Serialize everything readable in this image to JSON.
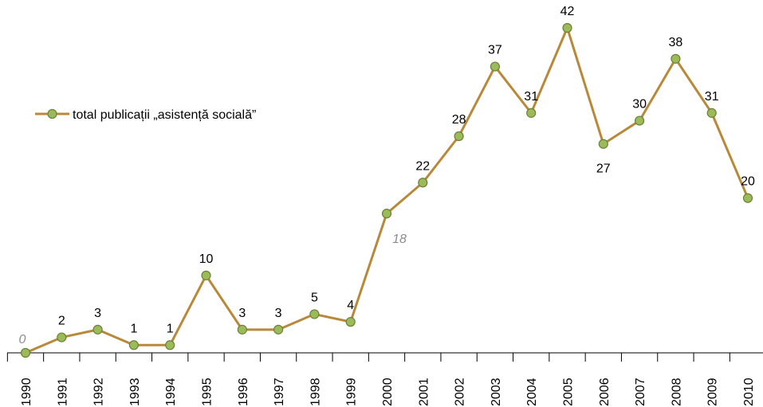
{
  "chart_data": {
    "type": "line",
    "categories": [
      "1990",
      "1991",
      "1992",
      "1993",
      "1994",
      "1995",
      "1996",
      "1997",
      "1998",
      "1999",
      "2000",
      "2001",
      "2002",
      "2003",
      "2004",
      "2005",
      "2006",
      "2007",
      "2008",
      "2009",
      "2010"
    ],
    "series": [
      {
        "name": "total publicații „asistență  socială”",
        "values": [
          0,
          2,
          3,
          1,
          1,
          10,
          3,
          3,
          5,
          4,
          18,
          22,
          28,
          37,
          31,
          42,
          27,
          30,
          38,
          31,
          20
        ]
      }
    ],
    "data_labels": [
      "0",
      "2",
      "3",
      "1",
      "1",
      "10",
      "3",
      "3",
      "5",
      "4",
      "18",
      "22",
      "28",
      "37",
      "31",
      "42",
      "27",
      "30",
      "38",
      "31",
      "20"
    ],
    "italic_label_indices": [
      0,
      10
    ],
    "label_below_indices": [
      10,
      16
    ],
    "ylim": [
      0,
      42
    ],
    "grid": false,
    "legend_position": "left-middle",
    "colors": {
      "line": "#b8893a",
      "marker_fill": "#9bbb59",
      "marker_stroke": "#6e7f3b",
      "axis": "#000000",
      "italic_label": "#8c8c8c"
    }
  }
}
